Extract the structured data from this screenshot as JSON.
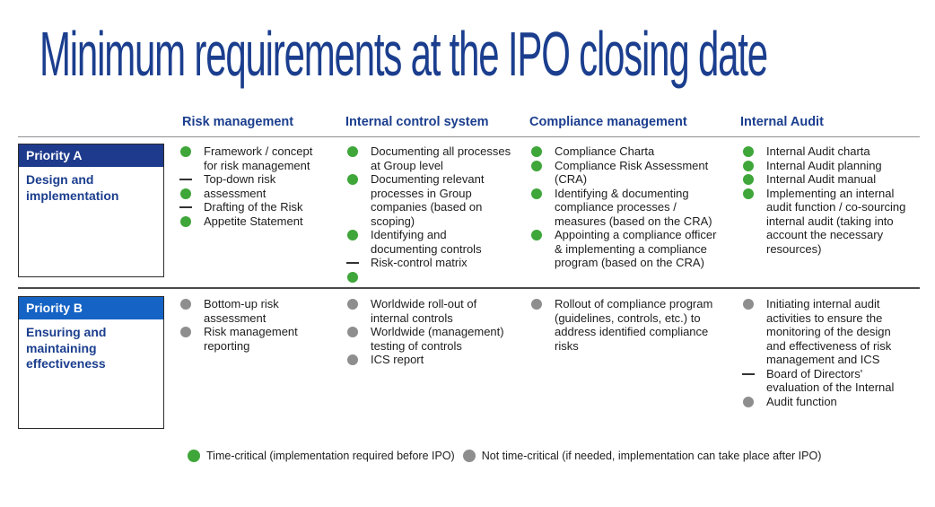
{
  "title": "Minimum requirements at the IPO closing date",
  "colors": {
    "navy": "#1b3e8e",
    "priority_a_bar": "#1e3a8c",
    "priority_b_bar": "#1563c4",
    "green": "#3fa63a",
    "gray": "#8e8e8e"
  },
  "columns": [
    {
      "label": "Risk management"
    },
    {
      "label": "Internal control system"
    },
    {
      "label": "Compliance management"
    },
    {
      "label": "Internal Audit"
    }
  ],
  "rows": [
    {
      "priority_label": "Priority A",
      "priority_desc": "Design and implementation",
      "cells": [
        {
          "lines": [
            {
              "m": "green",
              "t": "Framework / concept"
            },
            {
              "m": "none",
              "t": "for risk management"
            },
            {
              "m": "dash",
              "t": "Top-down risk"
            },
            {
              "m": "green",
              "t": "assessment"
            },
            {
              "m": "dash",
              "t": "Drafting of the Risk"
            },
            {
              "m": "green",
              "t": "Appetite Statement"
            }
          ]
        },
        {
          "lines": [
            {
              "m": "green",
              "t": "Documenting all processes"
            },
            {
              "m": "none",
              "t": "at Group level"
            },
            {
              "m": "green",
              "t": "Documenting relevant"
            },
            {
              "m": "none",
              "t": "processes in Group"
            },
            {
              "m": "none",
              "t": "companies (based on"
            },
            {
              "m": "none",
              "t": "scoping)"
            },
            {
              "m": "green",
              "t": "Identifying and"
            },
            {
              "m": "none",
              "t": "documenting controls"
            },
            {
              "m": "dash",
              "t": "Risk-control matrix"
            },
            {
              "m": "green",
              "t": ""
            }
          ]
        },
        {
          "lines": [
            {
              "m": "green",
              "t": "Compliance Charta"
            },
            {
              "m": "green",
              "t": "Compliance Risk Assessment"
            },
            {
              "m": "none",
              "t": "(CRA)"
            },
            {
              "m": "green",
              "t": "Identifying & documenting"
            },
            {
              "m": "none",
              "t": "compliance processes /"
            },
            {
              "m": "none",
              "t": "measures (based on the CRA)"
            },
            {
              "m": "green",
              "t": "Appointing a compliance officer"
            },
            {
              "m": "none",
              "t": "& implementing a compliance"
            },
            {
              "m": "none",
              "t": "program (based on the CRA)"
            }
          ]
        },
        {
          "lines": [
            {
              "m": "green",
              "t": "Internal Audit charta"
            },
            {
              "m": "green",
              "t": "Internal Audit planning"
            },
            {
              "m": "green",
              "t": "Internal Audit manual"
            },
            {
              "m": "green",
              "t": "Implementing an internal"
            },
            {
              "m": "none",
              "t": "audit function / co-sourcing"
            },
            {
              "m": "none",
              "t": "internal audit (taking into"
            },
            {
              "m": "none",
              "t": "account the necessary"
            },
            {
              "m": "none",
              "t": "resources)"
            }
          ]
        }
      ]
    },
    {
      "priority_label": "Priority B",
      "priority_desc": "Ensuring and maintaining effectiveness",
      "cells": [
        {
          "lines": [
            {
              "m": "gray",
              "t": "Bottom-up risk"
            },
            {
              "m": "none",
              "t": "assessment"
            },
            {
              "m": "gray",
              "t": "Risk management"
            },
            {
              "m": "none",
              "t": "reporting"
            }
          ]
        },
        {
          "lines": [
            {
              "m": "gray",
              "t": "Worldwide roll-out of"
            },
            {
              "m": "none",
              "t": "internal controls"
            },
            {
              "m": "gray",
              "t": "Worldwide (management)"
            },
            {
              "m": "none",
              "t": "testing of controls"
            },
            {
              "m": "gray",
              "t": "ICS report"
            }
          ]
        },
        {
          "lines": [
            {
              "m": "gray",
              "t": "Rollout of compliance program"
            },
            {
              "m": "none",
              "t": "(guidelines, controls, etc.) to"
            },
            {
              "m": "none",
              "t": "address identified compliance"
            },
            {
              "m": "none",
              "t": "risks"
            }
          ]
        },
        {
          "lines": [
            {
              "m": "gray",
              "t": "Initiating internal audit"
            },
            {
              "m": "none",
              "t": "activities to ensure the"
            },
            {
              "m": "none",
              "t": "monitoring of the design"
            },
            {
              "m": "none",
              "t": "and effectiveness of risk"
            },
            {
              "m": "none",
              "t": "management and ICS"
            },
            {
              "m": "dash",
              "t": "Board of Directors'"
            },
            {
              "m": "none",
              "t": "evaluation of the Internal"
            },
            {
              "m": "gray",
              "t": "Audit function"
            }
          ]
        }
      ]
    }
  ],
  "legend": [
    {
      "marker": "green",
      "label": "Time-critical (implementation required before IPO)"
    },
    {
      "marker": "gray",
      "label": "Not time-critical (if needed, implementation can take place after IPO)"
    }
  ]
}
